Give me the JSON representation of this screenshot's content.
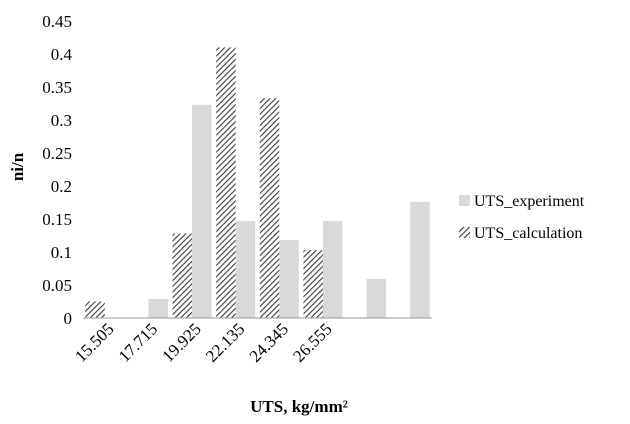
{
  "chart_data": {
    "type": "bar",
    "xlabel": "UTS, kg/mm²",
    "ylabel": "ni/n",
    "ylim": [
      0,
      0.45
    ],
    "ytick_step": 0.05,
    "yticks": [
      "0",
      "0.05",
      "0.1",
      "0.15",
      "0.2",
      "0.25",
      "0.3",
      "0.35",
      "0.4",
      "0.45"
    ],
    "xtick_labels": [
      "15.505",
      "17.715",
      "19.925",
      "22.135",
      "24.345",
      "26.555"
    ],
    "bin_count": 8,
    "grid": false,
    "legend_position": "right",
    "series": [
      {
        "name": "UTS_experiment",
        "pattern": "solid",
        "color": "#d9d9d9",
        "values": [
          0.0,
          0.029,
          0.323,
          0.147,
          0.118,
          0.147,
          0.059,
          0.176
        ]
      },
      {
        "name": "UTS_calculation",
        "pattern": "diagonal-hatch",
        "color": "#404040",
        "values": [
          0.025,
          0.0,
          0.128,
          0.41,
          0.333,
          0.103,
          0.0,
          0.0
        ]
      }
    ]
  }
}
